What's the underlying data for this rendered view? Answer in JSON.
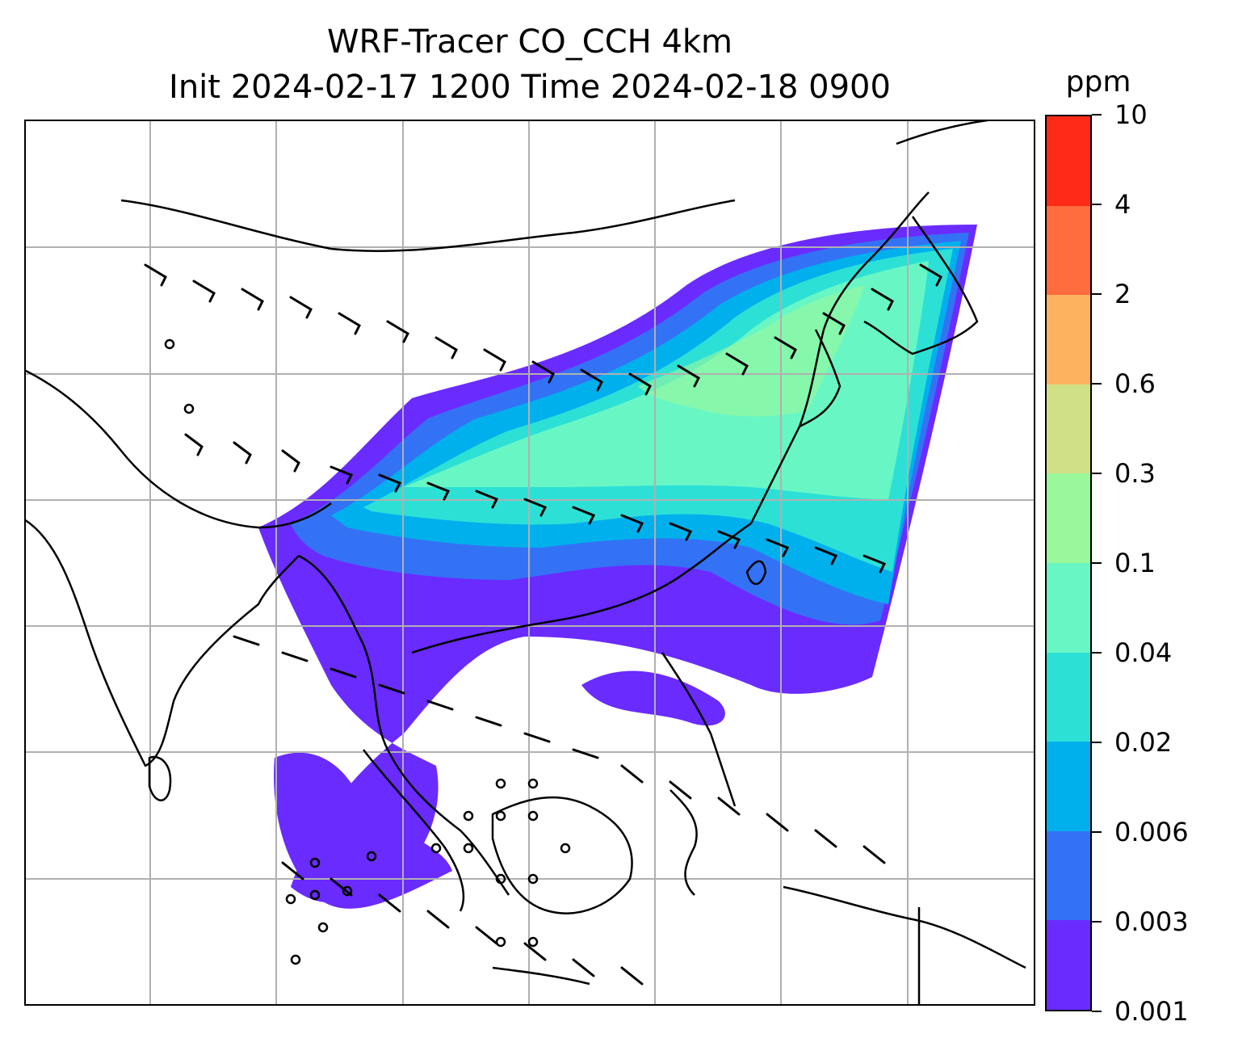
{
  "title": {
    "line1": "WRF-Tracer CO_CCH 4km",
    "line2": "Init 2024-02-17 1200 Time 2024-02-18 0900"
  },
  "colorbar": {
    "unit": "ppm",
    "levels": [
      "0.001",
      "0.003",
      "0.006",
      "0.02",
      "0.04",
      "0.1",
      "0.3",
      "0.6",
      "2",
      "4",
      "10"
    ],
    "colors": [
      "#6a2bff",
      "#3372f5",
      "#00b0ec",
      "#2de0d6",
      "#68f7c4",
      "#9bf79b",
      "#cfe087",
      "#fdb260",
      "#ff6c3d",
      "#ff2a17"
    ]
  },
  "map": {
    "gridlines": true,
    "gridline_color": "#b0b0b0",
    "coastline_color": "#000000",
    "wind_barbs": true
  }
}
